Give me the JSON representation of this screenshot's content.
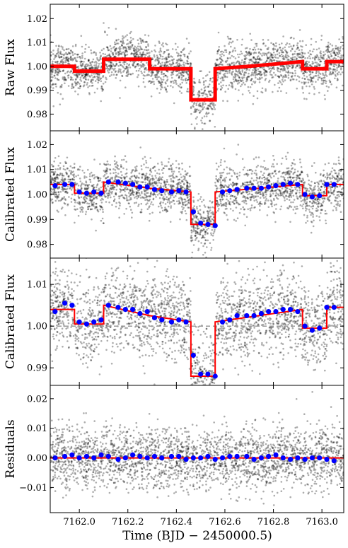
{
  "chart_data": [
    {
      "type": "scatter",
      "ylabel": "Raw Flux",
      "xlim": [
        7161.88,
        7163.09
      ],
      "ylim": [
        0.973,
        1.026
      ],
      "yticks": [
        0.98,
        0.99,
        1.0,
        1.01,
        1.02
      ],
      "ytick_labels": [
        "0.98",
        "0.99",
        "1.00",
        "1.01",
        "1.02"
      ],
      "scatter_color": "#000000",
      "series": [
        {
          "kind": "model_line",
          "color": "#ff0000",
          "points": [
            [
              7161.88,
              1.0
            ],
            [
              7161.98,
              1.0
            ],
            [
              7161.98,
              0.998
            ],
            [
              7162.1,
              0.998
            ],
            [
              7162.1,
              1.003
            ],
            [
              7162.29,
              1.003
            ],
            [
              7162.29,
              0.999
            ],
            [
              7162.46,
              0.999
            ],
            [
              7162.46,
              0.986
            ],
            [
              7162.56,
              0.986
            ],
            [
              7162.56,
              0.999
            ],
            [
              7162.7,
              1.0
            ],
            [
              7162.92,
              1.002
            ],
            [
              7162.92,
              0.999
            ],
            [
              7163.02,
              0.999
            ],
            [
              7163.02,
              1.002
            ],
            [
              7163.09,
              1.002
            ]
          ]
        }
      ]
    },
    {
      "type": "scatter",
      "ylabel": "Calibrated Flux",
      "xlim": [
        7161.88,
        7163.09
      ],
      "ylim": [
        0.9745,
        1.0255
      ],
      "yticks": [
        0.98,
        0.99,
        1.0,
        1.01,
        1.02
      ],
      "ytick_labels": [
        "0.98",
        "0.99",
        "1.00",
        "1.01",
        "1.02"
      ],
      "series": [
        {
          "kind": "model_line",
          "color": "#ff0000",
          "points": [
            [
              7161.88,
              1.004
            ],
            [
              7161.98,
              1.004
            ],
            [
              7161.98,
              1.0005
            ],
            [
              7162.1,
              1.0005
            ],
            [
              7162.1,
              1.005
            ],
            [
              7162.29,
              1.0025
            ],
            [
              7162.46,
              1.001
            ],
            [
              7162.46,
              0.988
            ],
            [
              7162.56,
              0.988
            ],
            [
              7162.56,
              1.001
            ],
            [
              7162.92,
              1.004
            ],
            [
              7162.92,
              0.9995
            ],
            [
              7163.02,
              0.9995
            ],
            [
              7163.02,
              1.004
            ],
            [
              7163.09,
              1.004
            ]
          ]
        },
        {
          "kind": "binned_points",
          "color": "#0000ff",
          "x": [
            7161.9,
            7161.94,
            7161.97,
            7162.0,
            7162.03,
            7162.06,
            7162.09,
            7162.12,
            7162.16,
            7162.19,
            7162.22,
            7162.25,
            7162.28,
            7162.31,
            7162.34,
            7162.38,
            7162.41,
            7162.44,
            7162.47,
            7162.5,
            7162.53,
            7162.56,
            7162.59,
            7162.62,
            7162.65,
            7162.69,
            7162.72,
            7162.75,
            7162.78,
            7162.81,
            7162.84,
            7162.87,
            7162.9,
            7162.93,
            7162.96,
            7162.99,
            7163.02,
            7163.05
          ],
          "y": [
            1.0035,
            1.004,
            1.004,
            1.001,
            1.0005,
            1.001,
            1.0005,
            1.005,
            1.005,
            1.0045,
            1.004,
            1.003,
            1.003,
            1.002,
            1.0015,
            1.001,
            1.0015,
            1.001,
            0.993,
            0.9885,
            0.988,
            0.9875,
            1.001,
            1.0015,
            1.002,
            1.0025,
            1.0025,
            1.0025,
            1.003,
            1.0035,
            1.004,
            1.0045,
            1.004,
            1.0,
            0.999,
            0.9995,
            1.004,
            1.004
          ]
        }
      ]
    },
    {
      "type": "scatter",
      "ylabel": "Calibrated Flux",
      "xlim": [
        7161.88,
        7163.09
      ],
      "ylim": [
        0.9858,
        1.0163
      ],
      "yticks": [
        0.99,
        1.0,
        1.01
      ],
      "ytick_labels": [
        "0.99",
        "1.00",
        "1.01"
      ],
      "reference_line": {
        "y": 1.0,
        "color": "#999999",
        "style": "dashed"
      },
      "series": [
        {
          "kind": "model_line",
          "color": "#ff0000",
          "points": [
            [
              7161.88,
              1.004
            ],
            [
              7161.98,
              1.004
            ],
            [
              7161.98,
              1.0005
            ],
            [
              7162.1,
              1.0005
            ],
            [
              7162.1,
              1.005
            ],
            [
              7162.29,
              1.0025
            ],
            [
              7162.46,
              1.001
            ],
            [
              7162.46,
              0.988
            ],
            [
              7162.56,
              0.988
            ],
            [
              7162.56,
              1.001
            ],
            [
              7162.92,
              1.004
            ],
            [
              7162.92,
              0.9995
            ],
            [
              7163.02,
              0.9995
            ],
            [
              7163.02,
              1.0045
            ],
            [
              7163.09,
              1.0045
            ]
          ]
        },
        {
          "kind": "binned_points",
          "color": "#0000ff",
          "x": [
            7161.9,
            7161.94,
            7161.97,
            7162.0,
            7162.03,
            7162.06,
            7162.09,
            7162.12,
            7162.16,
            7162.19,
            7162.22,
            7162.25,
            7162.28,
            7162.31,
            7162.34,
            7162.38,
            7162.41,
            7162.44,
            7162.47,
            7162.5,
            7162.53,
            7162.56,
            7162.59,
            7162.62,
            7162.65,
            7162.69,
            7162.72,
            7162.75,
            7162.78,
            7162.81,
            7162.84,
            7162.87,
            7162.9,
            7162.93,
            7162.96,
            7162.99,
            7163.02,
            7163.05
          ],
          "y": [
            1.0035,
            1.0055,
            1.005,
            1.001,
            1.0005,
            1.001,
            1.0015,
            1.005,
            1.0045,
            1.004,
            1.004,
            1.003,
            1.0035,
            1.002,
            1.0015,
            1.001,
            1.0015,
            1.001,
            0.993,
            0.9885,
            0.9885,
            0.988,
            1.001,
            1.0015,
            1.0025,
            1.0025,
            1.0025,
            1.003,
            1.0035,
            1.0035,
            1.004,
            1.004,
            1.0035,
            1.0,
            0.999,
            0.9995,
            1.0045,
            1.0045
          ]
        }
      ]
    },
    {
      "type": "scatter",
      "ylabel": "Residuals",
      "xlabel": "Time (BJD − 2450000.5)",
      "xlim": [
        7161.88,
        7163.09
      ],
      "ylim": [
        -0.0185,
        0.0245
      ],
      "yticks": [
        -0.01,
        0.0,
        0.01,
        0.02
      ],
      "ytick_labels": [
        "−0.01",
        "0.00",
        "0.01",
        "0.02"
      ],
      "xticks": [
        7162.0,
        7162.2,
        7162.4,
        7162.6,
        7162.8,
        7163.0
      ],
      "xtick_labels": [
        "7162.0",
        "7162.2",
        "7162.4",
        "7162.6",
        "7162.8",
        "7163.0"
      ],
      "series": [
        {
          "kind": "model_line",
          "color": "#ff0000",
          "points": [
            [
              7161.88,
              0.0
            ],
            [
              7163.09,
              0.0
            ]
          ]
        },
        {
          "kind": "binned_points",
          "color": "#0000ff",
          "x": [
            7161.9,
            7161.94,
            7161.97,
            7162.0,
            7162.03,
            7162.06,
            7162.09,
            7162.12,
            7162.16,
            7162.19,
            7162.22,
            7162.25,
            7162.28,
            7162.31,
            7162.34,
            7162.38,
            7162.41,
            7162.44,
            7162.47,
            7162.5,
            7162.53,
            7162.56,
            7162.59,
            7162.62,
            7162.65,
            7162.69,
            7162.72,
            7162.75,
            7162.78,
            7162.81,
            7162.84,
            7162.87,
            7162.9,
            7162.93,
            7162.96,
            7162.99,
            7163.02,
            7163.05
          ],
          "y": [
            0.0,
            0.0005,
            0.001,
            0.0,
            0.0005,
            0.0,
            0.001,
            0.0005,
            -0.0005,
            0.0,
            0.001,
            0.0005,
            0.0,
            0.0005,
            0.0,
            0.0005,
            0.0005,
            -0.0005,
            0.0,
            0.0,
            0.0005,
            -0.0005,
            0.0,
            0.0005,
            0.0005,
            0.0005,
            -0.0005,
            0.0,
            0.0005,
            0.001,
            0.0,
            -0.0005,
            0.0,
            -0.0005,
            0.0,
            0.0,
            -0.0005,
            -0.001
          ]
        }
      ]
    }
  ]
}
